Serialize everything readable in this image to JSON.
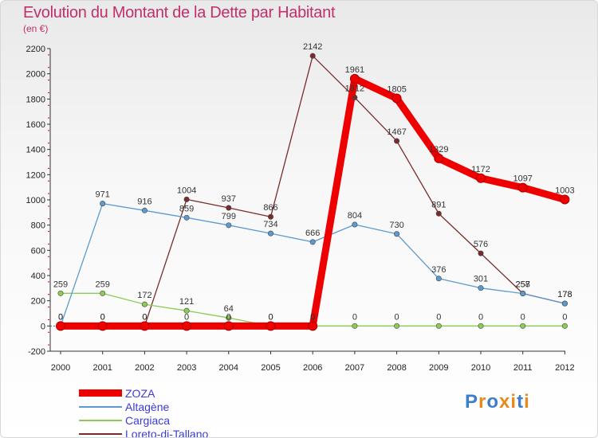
{
  "header": {
    "title": "Evolution du Montant de la Dette par Habitant",
    "subtitle": "(en €)"
  },
  "logo": {
    "text": "Proxiti",
    "colors": [
      "#3d7ec9",
      "#e8891c",
      "#3d7ec9",
      "#e8891c",
      "#e8891c",
      "#3d7ec9",
      "#e8891c"
    ]
  },
  "chart_data": {
    "type": "line",
    "x": [
      "2000",
      "2001",
      "2002",
      "2003",
      "2004",
      "2005",
      "2006",
      "2007",
      "2008",
      "2009",
      "2010",
      "2011",
      "2012"
    ],
    "ylim": [
      -200,
      2200
    ],
    "yticks": [
      -200,
      0,
      200,
      400,
      600,
      800,
      1000,
      1200,
      1400,
      1600,
      1800,
      2000,
      2200
    ],
    "grid": false,
    "legend": "bottom-left",
    "series": [
      {
        "name": "ZOZA",
        "color": "#ee0000",
        "width": 9,
        "values": [
          0,
          0,
          0,
          0,
          0,
          0,
          0,
          1961,
          1805,
          1329,
          1172,
          1097,
          1003
        ]
      },
      {
        "name": "Altagène",
        "color": "#5d9ad0",
        "width": 1.3,
        "values": [
          0,
          971,
          916,
          859,
          799,
          734,
          666,
          804,
          730,
          376,
          301,
          257,
          178
        ]
      },
      {
        "name": "Cargiaca",
        "color": "#8ccc55",
        "width": 1.3,
        "values": [
          259,
          259,
          172,
          121,
          64,
          0,
          0,
          0,
          0,
          0,
          0,
          0,
          0
        ]
      },
      {
        "name": "Loreto-di-Tallano",
        "color": "#7a2c2c",
        "width": 1.3,
        "values": [
          0,
          0,
          0,
          1004,
          937,
          866,
          2142,
          1812,
          1467,
          891,
          576,
          258,
          178
        ]
      }
    ]
  }
}
